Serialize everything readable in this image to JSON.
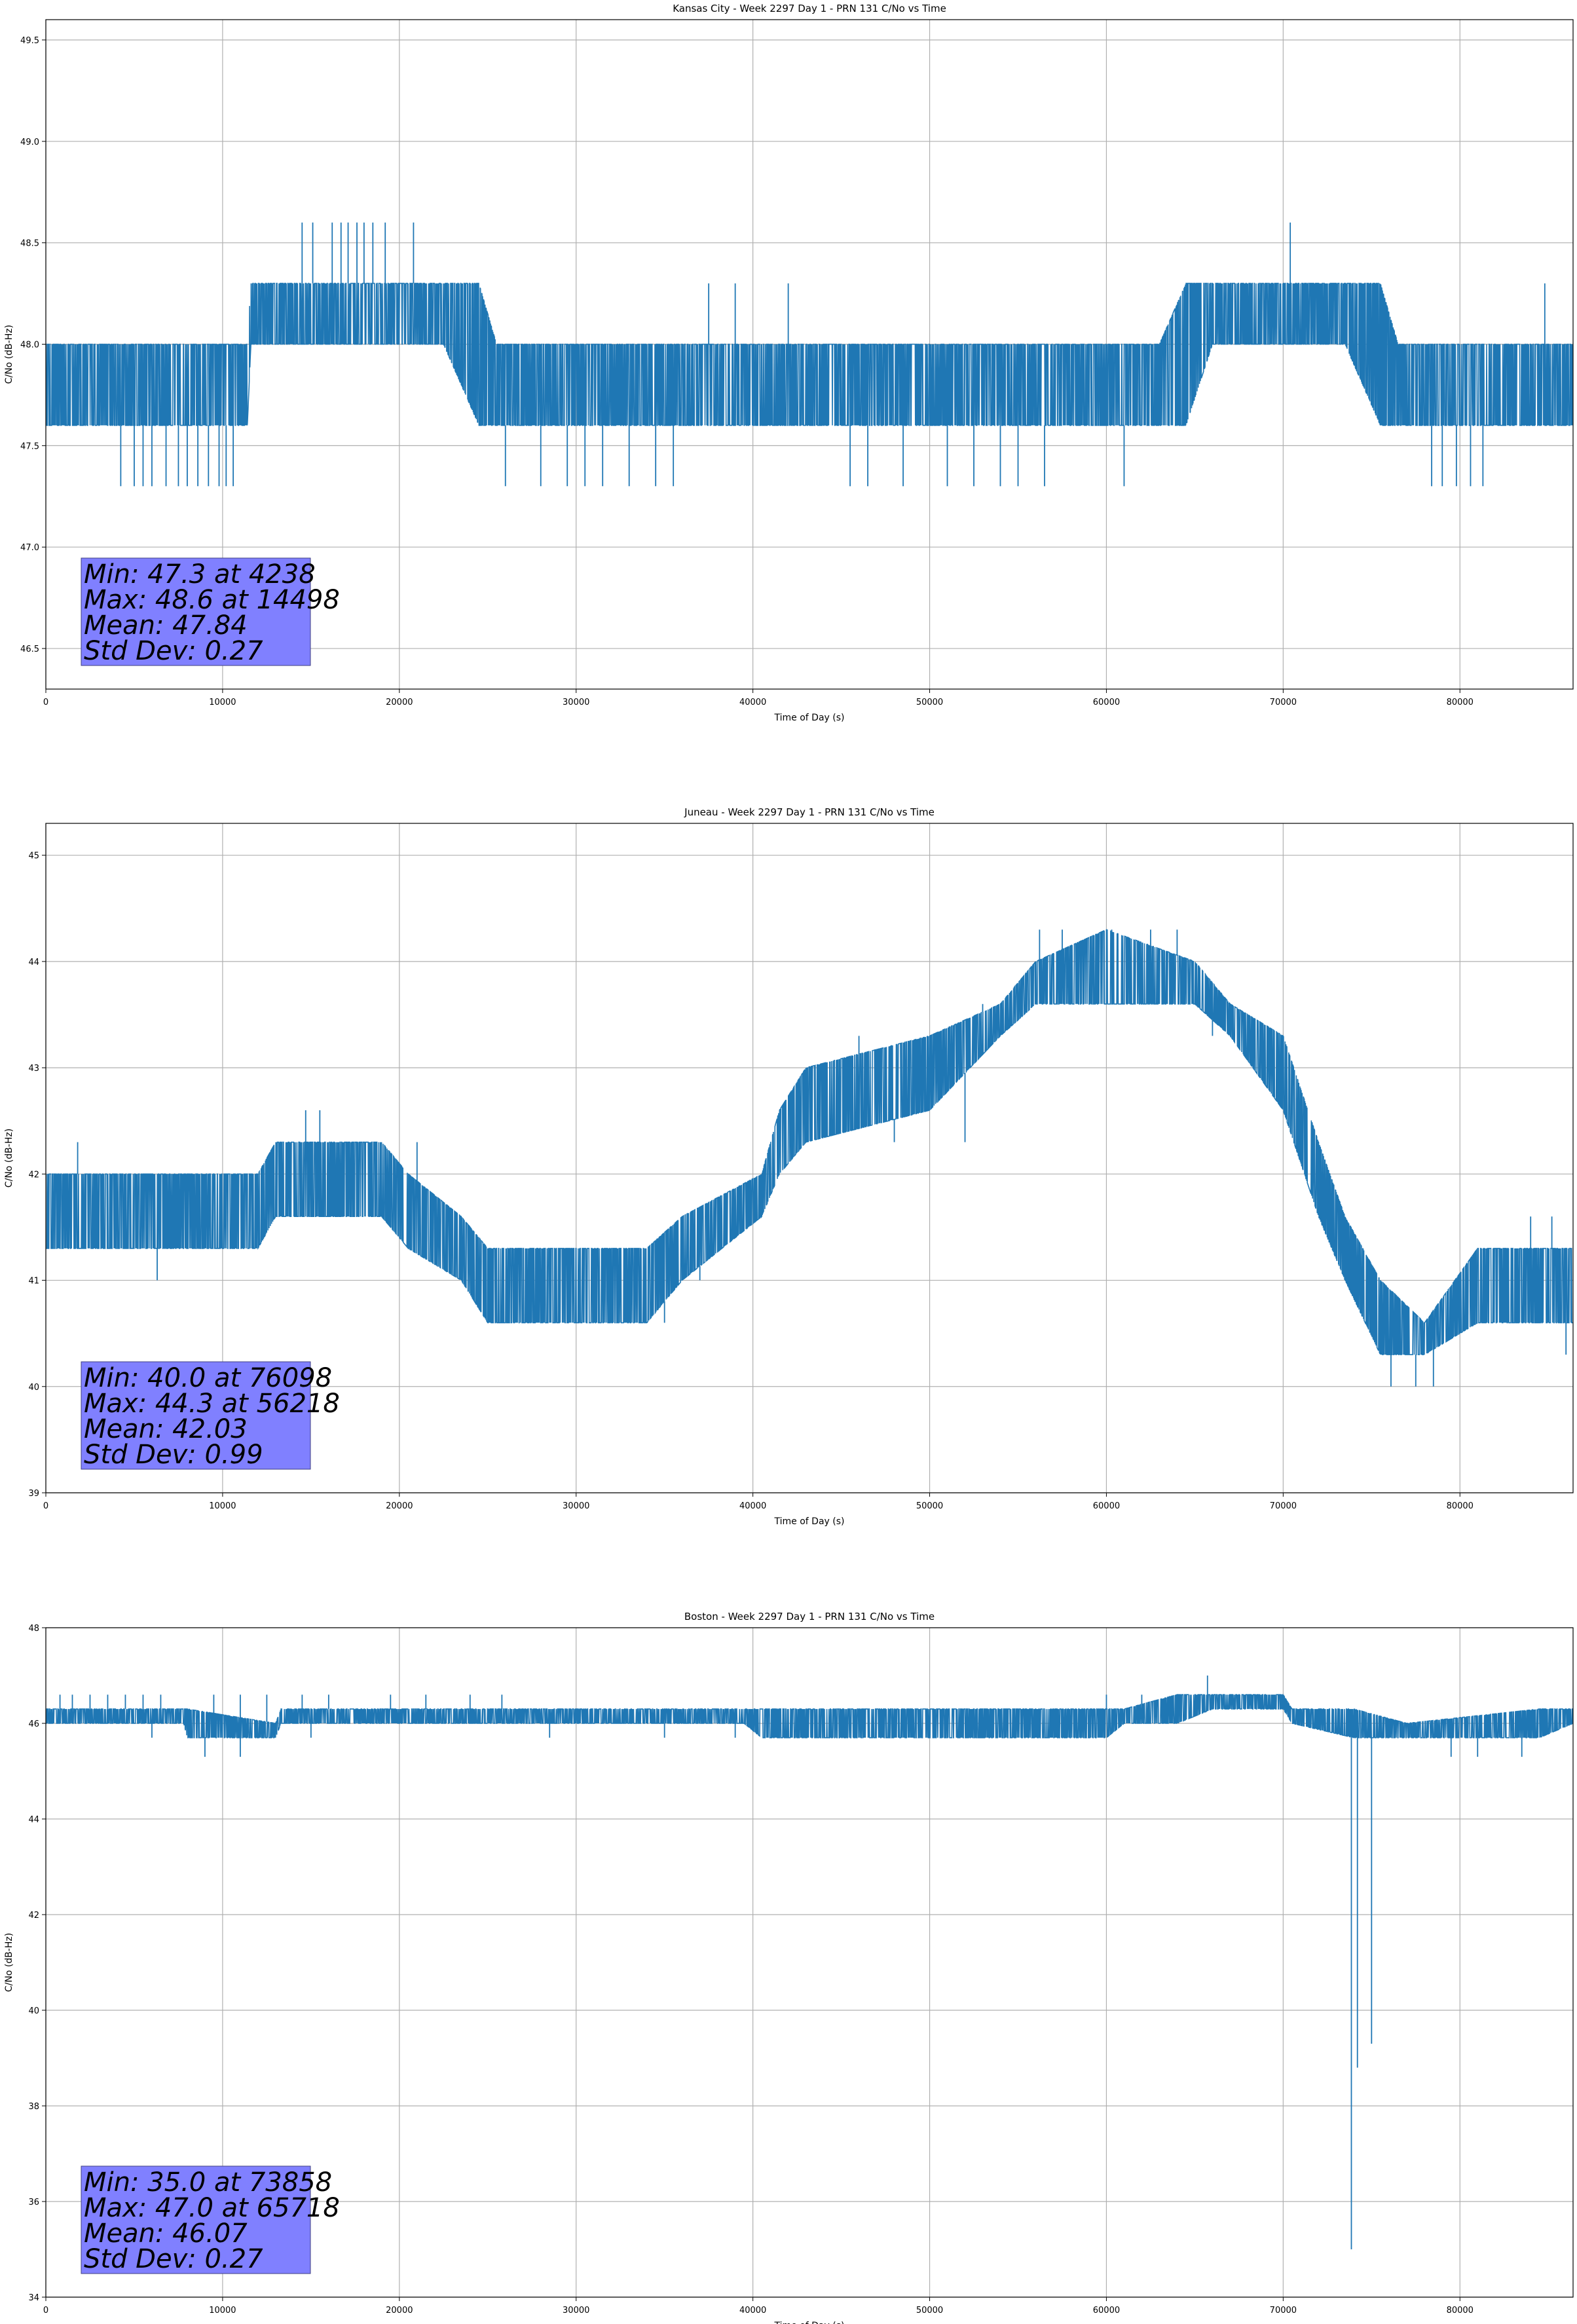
{
  "style": {
    "line_color": "#1f77b4",
    "stats_box_color": "#8080ff",
    "grid_color": "#b0b0b0"
  },
  "chart_data": [
    {
      "type": "line",
      "title": "Kansas City - Week 2297 Day 1 - PRN 131 C/No vs Time",
      "xlabel": "Time of Day (s)",
      "ylabel": "C/No (dB-Hz)",
      "xlim": [
        0,
        86400
      ],
      "ylim": [
        46.3,
        49.6
      ],
      "xticks": [
        0,
        10000,
        20000,
        30000,
        40000,
        50000,
        60000,
        70000,
        80000
      ],
      "yticks": [
        46.5,
        47.0,
        47.5,
        48.0,
        48.5,
        49.0,
        49.5
      ],
      "ytick_labels": [
        "46.5",
        "47.0",
        "47.5",
        "48.0",
        "48.5",
        "49.0",
        "49.5"
      ],
      "grid": true,
      "series": [
        {
          "band": [
            [
              0,
              47.6,
              48.0
            ],
            [
              4000,
              47.6,
              48.0
            ],
            [
              11400,
              47.6,
              48.0
            ],
            [
              11600,
              48.0,
              48.3
            ],
            [
              22500,
              48.0,
              48.3
            ],
            [
              24500,
              47.6,
              48.3
            ],
            [
              25500,
              47.6,
              48.0
            ],
            [
              63000,
              47.6,
              48.0
            ],
            [
              64500,
              47.6,
              48.3
            ],
            [
              66000,
              48.0,
              48.3
            ],
            [
              73500,
              48.0,
              48.3
            ],
            [
              75500,
              47.6,
              48.3
            ],
            [
              76500,
              47.6,
              48.0
            ],
            [
              86400,
              47.6,
              48.0
            ]
          ],
          "spikes": [
            [
              4238,
              47.3
            ],
            [
              5000,
              47.3
            ],
            [
              5500,
              47.3
            ],
            [
              6000,
              47.3
            ],
            [
              6800,
              47.3
            ],
            [
              7500,
              47.3
            ],
            [
              8000,
              47.3
            ],
            [
              8600,
              47.3
            ],
            [
              9200,
              47.3
            ],
            [
              9800,
              47.3
            ],
            [
              10200,
              47.3
            ],
            [
              10600,
              47.3
            ],
            [
              14498,
              48.6
            ],
            [
              15100,
              48.6
            ],
            [
              16200,
              48.6
            ],
            [
              16700,
              48.6
            ],
            [
              17100,
              48.6
            ],
            [
              17600,
              48.6
            ],
            [
              18000,
              48.6
            ],
            [
              18500,
              48.6
            ],
            [
              19200,
              48.6
            ],
            [
              20800,
              48.6
            ],
            [
              26000,
              47.3
            ],
            [
              28000,
              47.3
            ],
            [
              29500,
              47.3
            ],
            [
              30500,
              47.3
            ],
            [
              31500,
              47.3
            ],
            [
              33000,
              47.3
            ],
            [
              34500,
              47.3
            ],
            [
              35500,
              47.3
            ],
            [
              37500,
              48.3
            ],
            [
              39000,
              48.3
            ],
            [
              42000,
              48.3
            ],
            [
              45500,
              47.3
            ],
            [
              46500,
              47.3
            ],
            [
              48500,
              47.3
            ],
            [
              51000,
              47.3
            ],
            [
              52500,
              47.3
            ],
            [
              54000,
              47.3
            ],
            [
              55000,
              47.3
            ],
            [
              56500,
              47.3
            ],
            [
              61000,
              47.3
            ],
            [
              70400,
              48.6
            ],
            [
              78400,
              47.3
            ],
            [
              79000,
              47.3
            ],
            [
              79800,
              47.3
            ],
            [
              80600,
              47.3
            ],
            [
              81300,
              47.3
            ],
            [
              84800,
              48.3
            ]
          ]
        }
      ],
      "stats": [
        "Min: 47.3 at 4238",
        "Max: 48.6 at 14498",
        "Mean: 47.84",
        "Std Dev: 0.27"
      ]
    },
    {
      "type": "line",
      "title": "Juneau - Week 2297 Day 1 - PRN 131 C/No vs Time",
      "xlabel": "Time of Day (s)",
      "ylabel": "C/No (dB-Hz)",
      "xlim": [
        0,
        86400
      ],
      "ylim": [
        39,
        45.3
      ],
      "xticks": [
        0,
        10000,
        20000,
        30000,
        40000,
        50000,
        60000,
        70000,
        80000
      ],
      "yticks": [
        39,
        40,
        41,
        42,
        43,
        44,
        45
      ],
      "ytick_labels": [
        "39",
        "40",
        "41",
        "42",
        "43",
        "44",
        "45"
      ],
      "grid": true,
      "series": [
        {
          "band": [
            [
              0,
              41.3,
              42.0
            ],
            [
              12000,
              41.3,
              42.0
            ],
            [
              13000,
              41.6,
              42.3
            ],
            [
              19000,
              41.6,
              42.3
            ],
            [
              20500,
              41.3,
              42.0
            ],
            [
              23500,
              41.0,
              41.6
            ],
            [
              25000,
              40.6,
              41.3
            ],
            [
              34000,
              40.6,
              41.3
            ],
            [
              36000,
              41.0,
              41.6
            ],
            [
              40500,
              41.6,
              42.0
            ],
            [
              41500,
              42.0,
              42.6
            ],
            [
              43000,
              42.3,
              43.0
            ],
            [
              50000,
              42.6,
              43.3
            ],
            [
              54000,
              43.3,
              43.6
            ],
            [
              56000,
              43.6,
              44.0
            ],
            [
              60000,
              43.6,
              44.3
            ],
            [
              65000,
              43.6,
              44.0
            ],
            [
              67000,
              43.3,
              43.6
            ],
            [
              70000,
              42.6,
              43.3
            ],
            [
              72000,
              41.6,
              42.3
            ],
            [
              73500,
              41.0,
              41.6
            ],
            [
              75500,
              40.3,
              41.0
            ],
            [
              78000,
              40.3,
              40.6
            ],
            [
              81000,
              40.6,
              41.3
            ],
            [
              86400,
              40.6,
              41.3
            ]
          ],
          "spikes": [
            [
              1800,
              42.3
            ],
            [
              6300,
              41.0
            ],
            [
              14700,
              42.6
            ],
            [
              15500,
              42.6
            ],
            [
              21000,
              42.3
            ],
            [
              25000,
              40.6
            ],
            [
              27000,
              40.6
            ],
            [
              30000,
              40.6
            ],
            [
              32000,
              40.6
            ],
            [
              35000,
              40.6
            ],
            [
              37000,
              41.0
            ],
            [
              46000,
              43.3
            ],
            [
              50000,
              43.3
            ],
            [
              53000,
              43.6
            ],
            [
              56218,
              44.3
            ],
            [
              57500,
              44.3
            ],
            [
              60300,
              44.3
            ],
            [
              62500,
              44.3
            ],
            [
              64000,
              44.3
            ],
            [
              48000,
              42.3
            ],
            [
              52000,
              42.3
            ],
            [
              60000,
              43.6
            ],
            [
              66000,
              43.3
            ],
            [
              76098,
              40.0
            ],
            [
              77500,
              40.0
            ],
            [
              78500,
              40.0
            ],
            [
              84000,
              41.6
            ],
            [
              85200,
              41.6
            ],
            [
              86000,
              40.3
            ]
          ]
        }
      ],
      "stats": [
        "Min: 40.0 at 76098",
        "Max: 44.3 at 56218",
        "Mean: 42.03",
        "Std Dev: 0.99"
      ]
    },
    {
      "type": "line",
      "title": "Boston - Week 2297 Day 1 - PRN 131 C/No vs Time",
      "xlabel": "Time of Day (s)",
      "ylabel": "C/No (dB-Hz)",
      "xlim": [
        0,
        86400
      ],
      "ylim": [
        34,
        48
      ],
      "xticks": [
        0,
        10000,
        20000,
        30000,
        40000,
        50000,
        60000,
        70000,
        80000
      ],
      "yticks": [
        34,
        36,
        38,
        40,
        42,
        44,
        46,
        48
      ],
      "ytick_labels": [
        "34",
        "36",
        "38",
        "40",
        "42",
        "44",
        "46",
        "48"
      ],
      "grid": true,
      "series": [
        {
          "band": [
            [
              0,
              46.0,
              46.3
            ],
            [
              7800,
              46.0,
              46.3
            ],
            [
              8000,
              45.7,
              46.3
            ],
            [
              13000,
              45.7,
              46.0
            ],
            [
              13300,
              46.0,
              46.3
            ],
            [
              39500,
              46.0,
              46.3
            ],
            [
              40500,
              45.7,
              46.3
            ],
            [
              60000,
              45.7,
              46.3
            ],
            [
              61000,
              46.0,
              46.3
            ],
            [
              64000,
              46.0,
              46.6
            ],
            [
              66000,
              46.3,
              46.6
            ],
            [
              70000,
              46.3,
              46.6
            ],
            [
              70500,
              46.0,
              46.3
            ],
            [
              74000,
              45.7,
              46.3
            ],
            [
              77000,
              45.7,
              46.0
            ],
            [
              84500,
              45.7,
              46.3
            ],
            [
              86400,
              46.0,
              46.3
            ]
          ],
          "spikes": [
            [
              800,
              46.6
            ],
            [
              1500,
              46.6
            ],
            [
              2500,
              46.6
            ],
            [
              3500,
              46.6
            ],
            [
              4500,
              46.6
            ],
            [
              5500,
              46.6
            ],
            [
              6500,
              46.6
            ],
            [
              9500,
              46.6
            ],
            [
              11000,
              46.6
            ],
            [
              12500,
              46.6
            ],
            [
              14500,
              46.6
            ],
            [
              16000,
              46.6
            ],
            [
              19500,
              46.6
            ],
            [
              21500,
              46.6
            ],
            [
              24000,
              46.6
            ],
            [
              25800,
              46.6
            ],
            [
              6000,
              45.7
            ],
            [
              9000,
              45.3
            ],
            [
              11000,
              45.3
            ],
            [
              15000,
              45.7
            ],
            [
              28500,
              45.7
            ],
            [
              35000,
              45.7
            ],
            [
              39000,
              45.7
            ],
            [
              60000,
              46.6
            ],
            [
              62000,
              46.6
            ],
            [
              65718,
              47.0
            ],
            [
              73858,
              35.0
            ],
            [
              74200,
              38.8
            ],
            [
              75000,
              39.3
            ],
            [
              79500,
              45.3
            ],
            [
              81000,
              45.3
            ],
            [
              83500,
              45.3
            ]
          ]
        }
      ],
      "stats": [
        "Min: 35.0 at 73858",
        "Max: 47.0 at 65718",
        "Mean: 46.07",
        "Std Dev: 0.27"
      ]
    }
  ]
}
